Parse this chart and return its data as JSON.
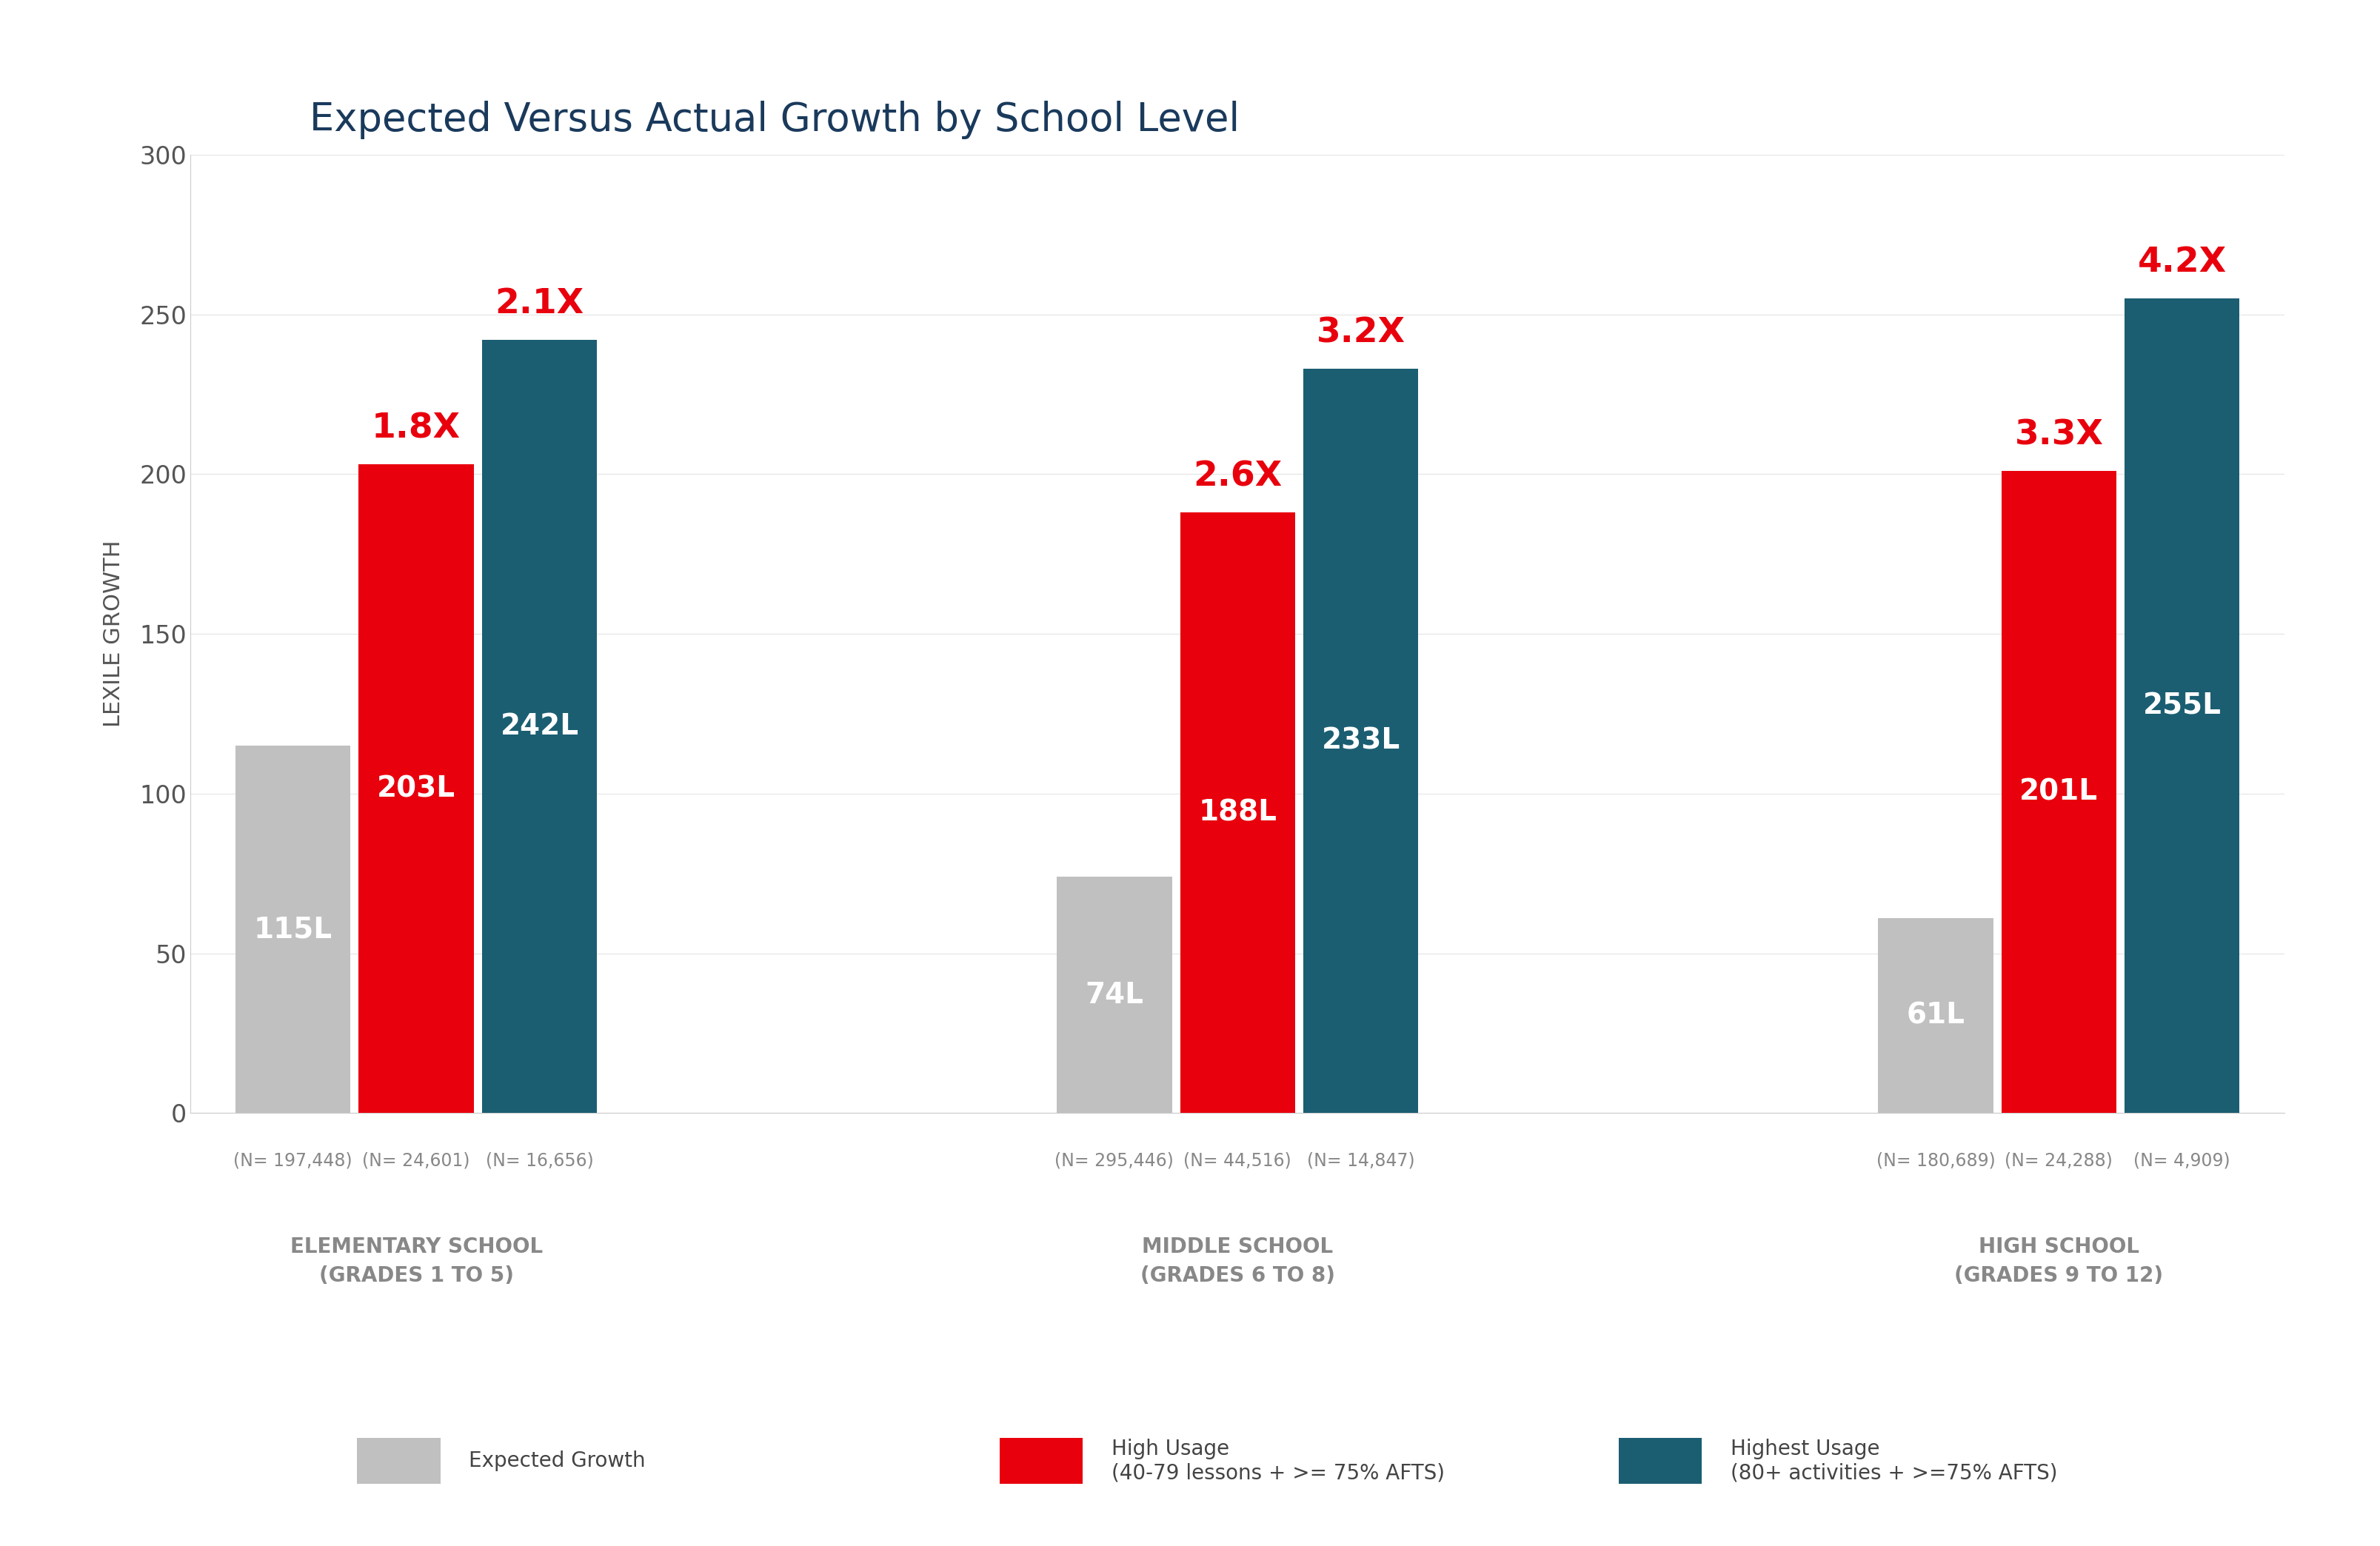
{
  "title": "Expected Versus Actual Growth by School Level",
  "ylabel": "LEXILE GROWTH",
  "ylim": [
    0,
    300
  ],
  "yticks": [
    0,
    50,
    100,
    150,
    200,
    250,
    300
  ],
  "background_color": "#ffffff",
  "groups": [
    {
      "label": "ELEMENTARY SCHOOL\n(GRADES 1 TO 5)",
      "bars": [
        {
          "value": 115,
          "color": "#c0c0c0",
          "label_inside": "115L",
          "n_label": "(N= 197,448)",
          "multiplier": null
        },
        {
          "value": 203,
          "color": "#e8000d",
          "label_inside": "203L",
          "n_label": "(N= 24,601)",
          "multiplier": "1.8X"
        },
        {
          "value": 242,
          "color": "#1b5e72",
          "label_inside": "242L",
          "n_label": "(N= 16,656)",
          "multiplier": "2.1X"
        }
      ]
    },
    {
      "label": "MIDDLE SCHOOL\n(GRADES 6 TO 8)",
      "bars": [
        {
          "value": 74,
          "color": "#c0c0c0",
          "label_inside": "74L",
          "n_label": "(N= 295,446)",
          "multiplier": null
        },
        {
          "value": 188,
          "color": "#e8000d",
          "label_inside": "188L",
          "n_label": "(N= 44,516)",
          "multiplier": "2.6X"
        },
        {
          "value": 233,
          "color": "#1b5e72",
          "label_inside": "233L",
          "n_label": "(N= 14,847)",
          "multiplier": "3.2X"
        }
      ]
    },
    {
      "label": "HIGH SCHOOL\n(GRADES 9 TO 12)",
      "bars": [
        {
          "value": 61,
          "color": "#c0c0c0",
          "label_inside": "61L",
          "n_label": "(N= 180,689)",
          "multiplier": null
        },
        {
          "value": 201,
          "color": "#e8000d",
          "label_inside": "201L",
          "n_label": "(N= 24,288)",
          "multiplier": "3.3X"
        },
        {
          "value": 255,
          "color": "#1b5e72",
          "label_inside": "255L",
          "n_label": "(N= 4,909)",
          "multiplier": "4.2X"
        }
      ]
    }
  ],
  "legend": [
    {
      "label": "Expected Growth",
      "color": "#c0c0c0"
    },
    {
      "label": "High Usage\n(40-79 lessons + >= 75% AFTS)",
      "color": "#e8000d"
    },
    {
      "label": "Highest Usage\n(80+ activities + >=75% AFTS)",
      "color": "#1b5e72"
    }
  ],
  "title_color": "#1a3a5c",
  "multiplier_color": "#e8000d",
  "bar_label_color": "#ffffff",
  "n_label_color": "#888888",
  "group_label_color": "#888888",
  "bar_width": 0.28,
  "group_centers": [
    1.0,
    3.0,
    5.0
  ],
  "bar_offsets": [
    -0.3,
    0.0,
    0.3
  ]
}
